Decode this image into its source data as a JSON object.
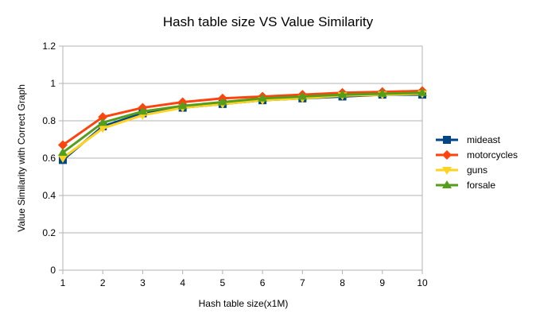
{
  "chart_data": {
    "type": "line",
    "title": "Hash table size VS Value Similarity",
    "xlabel": "Hash table size(x1M)",
    "ylabel": "Value Similarity with Correct Graph",
    "x": [
      1,
      2,
      3,
      4,
      5,
      6,
      7,
      8,
      9,
      10
    ],
    "ylim": [
      0,
      1.2
    ],
    "yticks": [
      "0",
      "0.2",
      "0.4",
      "0.6",
      "0.8",
      "1",
      "1.2"
    ],
    "xticks": [
      "1",
      "2",
      "3",
      "4",
      "5",
      "6",
      "7",
      "8",
      "9",
      "10"
    ],
    "grid": "horizontal",
    "legend": "right",
    "series": [
      {
        "name": "mideast",
        "color": "#004586",
        "marker": "square",
        "values": [
          0.59,
          0.77,
          0.84,
          0.87,
          0.89,
          0.91,
          0.92,
          0.93,
          0.94,
          0.94
        ]
      },
      {
        "name": "motorcycles",
        "color": "#ff420e",
        "marker": "diamond",
        "values": [
          0.67,
          0.82,
          0.87,
          0.9,
          0.92,
          0.93,
          0.94,
          0.95,
          0.955,
          0.96
        ]
      },
      {
        "name": "guns",
        "color": "#ffd320",
        "marker": "triangle-down",
        "values": [
          0.6,
          0.76,
          0.83,
          0.87,
          0.89,
          0.91,
          0.92,
          0.935,
          0.94,
          0.945
        ]
      },
      {
        "name": "forsale",
        "color": "#579d1c",
        "marker": "triangle-up",
        "values": [
          0.63,
          0.79,
          0.85,
          0.88,
          0.9,
          0.92,
          0.93,
          0.94,
          0.945,
          0.95
        ]
      }
    ]
  }
}
